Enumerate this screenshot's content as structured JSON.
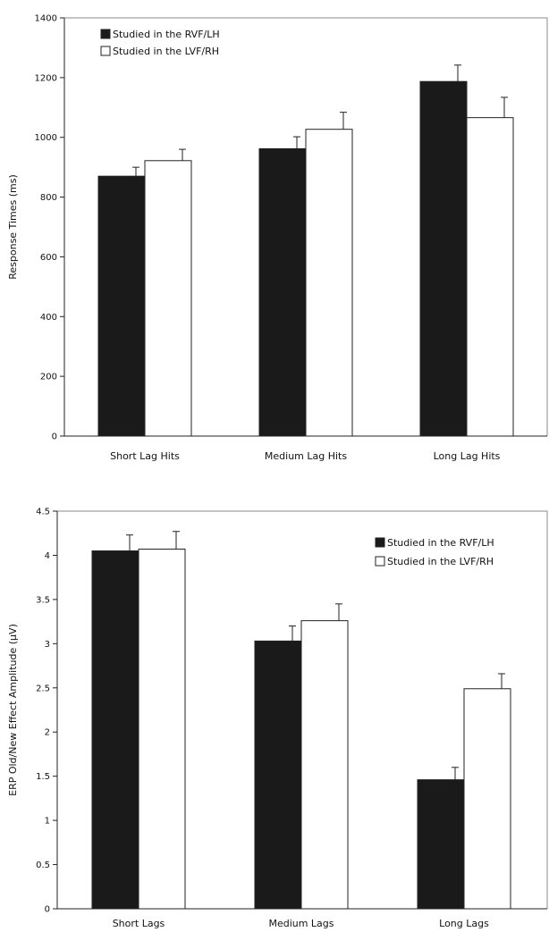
{
  "chart_data": [
    {
      "type": "bar",
      "ylabel": "Response Times (ms)",
      "ylim": [
        0,
        1400
      ],
      "yticks": [
        "0",
        "200",
        "400",
        "600",
        "800",
        "1000",
        "1200",
        "1400"
      ],
      "categories": [
        "Short Lag Hits",
        "Medium Lag Hits",
        "Long Lag Hits"
      ],
      "series": [
        {
          "name": "Studied in the RVF/LH",
          "color": "#1a1a1a",
          "values": [
            870,
            962,
            1187
          ],
          "errors": [
            30,
            40,
            55
          ]
        },
        {
          "name": "Studied in the LVF/RH",
          "color": "#ffffff",
          "values": [
            922,
            1027,
            1066
          ],
          "errors": [
            38,
            57,
            68
          ]
        }
      ],
      "legend": "top-left",
      "grid": false
    },
    {
      "type": "bar",
      "ylabel": "ERP Old/New Effect Amplitude (µV)",
      "ylim": [
        0,
        4.5
      ],
      "yticks": [
        "0",
        "0.5",
        "1",
        "1.5",
        "2",
        "2.5",
        "3",
        "3.5",
        "4",
        "4.5"
      ],
      "categories": [
        "Short Lags",
        "Medium Lags",
        "Long Lags"
      ],
      "series": [
        {
          "name": "Studied in the RVF/LH",
          "color": "#1a1a1a",
          "values": [
            4.05,
            3.03,
            1.46
          ],
          "errors": [
            0.18,
            0.17,
            0.14
          ]
        },
        {
          "name": "Studied in the LVF/RH",
          "color": "#ffffff",
          "values": [
            4.07,
            3.26,
            2.49
          ],
          "errors": [
            0.2,
            0.19,
            0.17
          ]
        }
      ],
      "legend": "top-right",
      "grid": false
    }
  ]
}
